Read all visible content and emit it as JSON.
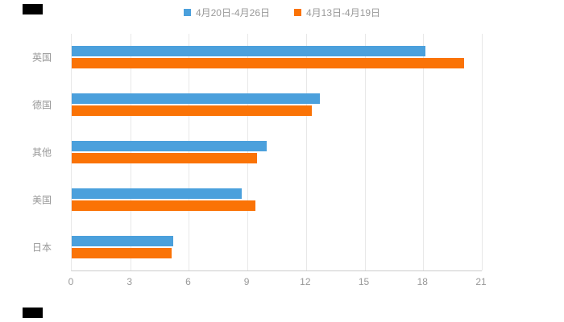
{
  "legend": {
    "items": [
      {
        "label": "4月20日-4月26日",
        "color": "#4BA0DC"
      },
      {
        "label": "4月13日-4月19日",
        "color": "#FA7306"
      }
    ]
  },
  "chart_data": {
    "type": "bar",
    "orientation": "horizontal",
    "title": "",
    "categories": [
      "英国",
      "德国",
      "其他",
      "美国",
      "日本"
    ],
    "series": [
      {
        "name": "4月20日-4月26日",
        "color": "#4BA0DC",
        "values": [
          18.1,
          12.7,
          10.0,
          8.7,
          5.2
        ]
      },
      {
        "name": "4月13日-4月19日",
        "color": "#FA7306",
        "values": [
          20.1,
          12.3,
          9.5,
          9.4,
          5.1
        ]
      }
    ],
    "xlim": [
      0,
      21
    ],
    "xticks": [
      0,
      3,
      6,
      9,
      12,
      15,
      18,
      21
    ],
    "grid": true,
    "legend_position": "top",
    "axis_color": "#cccccc",
    "gridline_color": "#e8e8e8",
    "label_color": "#999999",
    "xlabel": "",
    "ylabel": ""
  }
}
